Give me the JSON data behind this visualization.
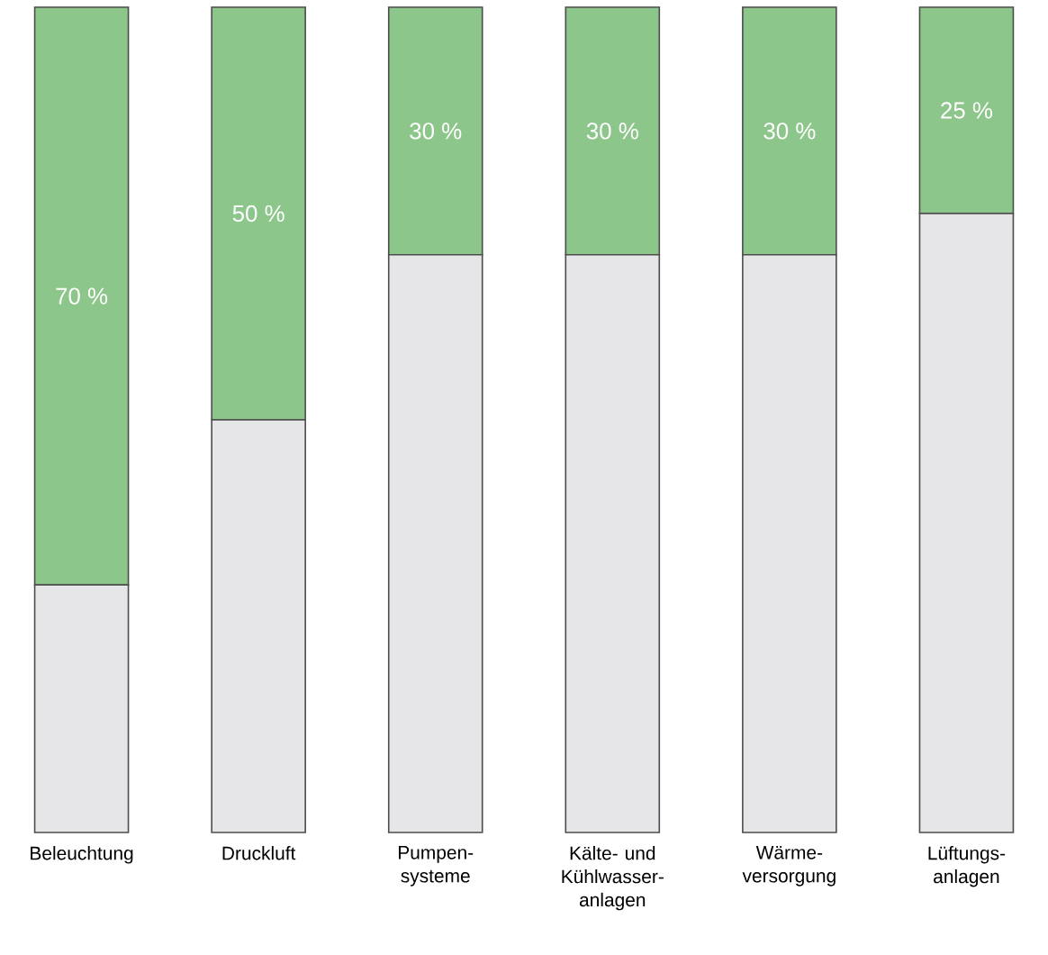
{
  "chart_data": {
    "type": "bar",
    "stacked": true,
    "categories": [
      "Beleuchtung",
      "Druckluft",
      "Pumpen-systeme",
      "Kälte- und Kühlwasser-anlagen",
      "Wärme-versorgung",
      "Lüftungs-anlagen"
    ],
    "series": [
      {
        "color": "#e6e6e8",
        "values": [
          30,
          50,
          70,
          70,
          70,
          75
        ]
      },
      {
        "color": "#8dc68a",
        "values": [
          70,
          50,
          30,
          30,
          30,
          25
        ],
        "value_labels": [
          "70 %",
          "50 %",
          "30 %",
          "30 %",
          "30 %",
          "25 %"
        ]
      }
    ],
    "tick_labels": "x"
  }
}
